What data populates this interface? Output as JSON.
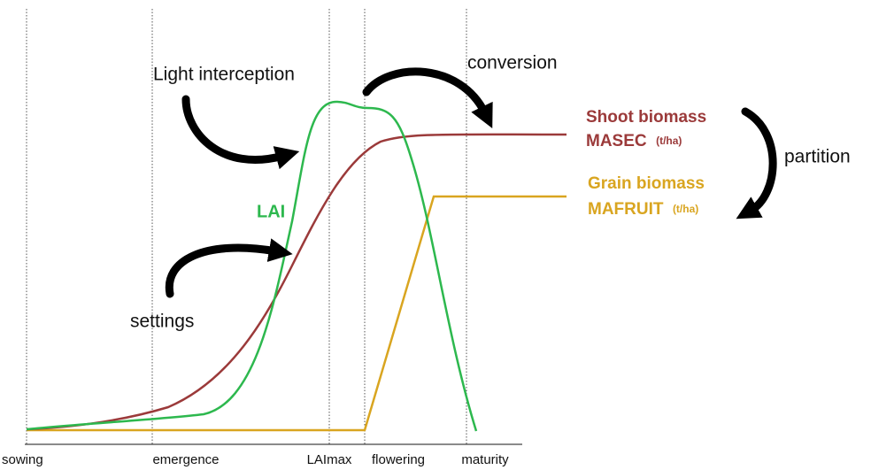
{
  "annotations": {
    "light_interception": "Light interception",
    "conversion": "conversion",
    "settings": "settings",
    "partition": "partition",
    "lai": "LAI"
  },
  "outputs": [
    {
      "name": "Shoot biomass",
      "variable": "MASEC",
      "unit": "(t/ha)"
    },
    {
      "name": "Grain biomass",
      "variable": "MAFRUIT",
      "unit": "(t/ha)"
    }
  ],
  "stages": [
    "sowing",
    "emergence",
    "LAImax",
    "flowering",
    "maturity"
  ]
}
